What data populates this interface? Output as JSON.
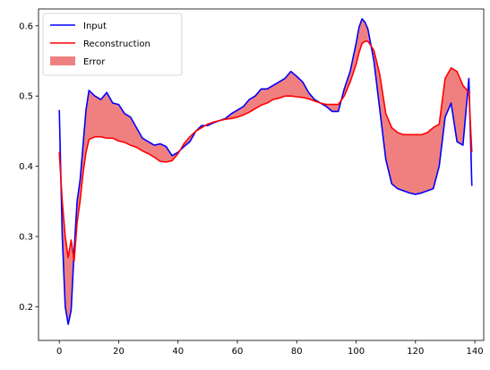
{
  "chart_data": {
    "type": "line",
    "xlim": [
      -7,
      143
    ],
    "ylim": [
      0.152,
      0.624
    ],
    "xticks": [
      0,
      20,
      40,
      60,
      80,
      100,
      120,
      140
    ],
    "yticks": [
      0.2,
      0.3,
      0.4,
      0.5,
      0.6
    ],
    "xtick_labels": [
      "0",
      "20",
      "40",
      "60",
      "80",
      "100",
      "120",
      "140"
    ],
    "ytick_labels": [
      "0.2",
      "0.3",
      "0.4",
      "0.5",
      "0.6"
    ],
    "grid": false,
    "legend_position": "top-left",
    "legend": [
      "Input",
      "Reconstruction",
      "Error"
    ],
    "series": [
      {
        "name": "Input",
        "color": "#0000ff",
        "x": [
          0,
          1,
          2,
          3,
          4,
          5,
          6,
          7,
          8,
          9,
          10,
          12,
          14,
          16,
          18,
          20,
          22,
          24,
          26,
          28,
          30,
          32,
          34,
          36,
          38,
          40,
          42,
          44,
          46,
          48,
          50,
          52,
          54,
          56,
          58,
          60,
          62,
          64,
          66,
          68,
          70,
          72,
          74,
          76,
          78,
          80,
          82,
          84,
          86,
          88,
          90,
          92,
          94,
          96,
          98,
          100,
          101,
          102,
          103,
          104,
          106,
          108,
          110,
          112,
          114,
          116,
          118,
          120,
          122,
          124,
          126,
          128,
          130,
          132,
          134,
          136,
          138,
          139
        ],
        "y": [
          0.48,
          0.3,
          0.2,
          0.175,
          0.195,
          0.28,
          0.35,
          0.38,
          0.43,
          0.48,
          0.508,
          0.5,
          0.495,
          0.505,
          0.49,
          0.488,
          0.475,
          0.47,
          0.455,
          0.44,
          0.435,
          0.43,
          0.432,
          0.428,
          0.415,
          0.42,
          0.428,
          0.435,
          0.45,
          0.458,
          0.458,
          0.462,
          0.465,
          0.468,
          0.475,
          0.48,
          0.485,
          0.495,
          0.5,
          0.51,
          0.51,
          0.515,
          0.52,
          0.525,
          0.535,
          0.528,
          0.52,
          0.505,
          0.495,
          0.49,
          0.485,
          0.478,
          0.478,
          0.51,
          0.535,
          0.575,
          0.598,
          0.61,
          0.605,
          0.595,
          0.55,
          0.48,
          0.41,
          0.375,
          0.368,
          0.365,
          0.362,
          0.36,
          0.362,
          0.365,
          0.368,
          0.4,
          0.47,
          0.49,
          0.435,
          0.43,
          0.525,
          0.372
        ]
      },
      {
        "name": "Reconstruction",
        "color": "#ff0000",
        "x": [
          0,
          1,
          2,
          3,
          4,
          5,
          6,
          7,
          8,
          9,
          10,
          12,
          14,
          16,
          18,
          20,
          22,
          24,
          26,
          28,
          30,
          32,
          34,
          36,
          38,
          40,
          42,
          44,
          46,
          48,
          50,
          52,
          54,
          56,
          58,
          60,
          62,
          64,
          66,
          68,
          70,
          72,
          74,
          76,
          78,
          80,
          82,
          84,
          86,
          88,
          90,
          92,
          94,
          96,
          98,
          100,
          101,
          102,
          103,
          104,
          106,
          108,
          110,
          112,
          114,
          116,
          118,
          120,
          122,
          124,
          126,
          128,
          130,
          132,
          134,
          136,
          138,
          139
        ],
        "y": [
          0.42,
          0.35,
          0.3,
          0.27,
          0.295,
          0.265,
          0.32,
          0.35,
          0.39,
          0.42,
          0.438,
          0.442,
          0.442,
          0.44,
          0.44,
          0.436,
          0.434,
          0.43,
          0.427,
          0.422,
          0.418,
          0.413,
          0.407,
          0.406,
          0.408,
          0.418,
          0.432,
          0.442,
          0.45,
          0.455,
          0.46,
          0.463,
          0.465,
          0.467,
          0.468,
          0.47,
          0.473,
          0.477,
          0.482,
          0.487,
          0.49,
          0.495,
          0.497,
          0.5,
          0.5,
          0.499,
          0.498,
          0.496,
          0.493,
          0.49,
          0.488,
          0.488,
          0.488,
          0.5,
          0.52,
          0.545,
          0.562,
          0.575,
          0.578,
          0.578,
          0.565,
          0.53,
          0.475,
          0.455,
          0.448,
          0.445,
          0.445,
          0.445,
          0.445,
          0.448,
          0.455,
          0.46,
          0.525,
          0.54,
          0.535,
          0.515,
          0.505,
          0.42
        ]
      }
    ],
    "error_band": {
      "name": "Error",
      "color": "#f08080",
      "between": [
        "Input",
        "Reconstruction"
      ]
    }
  }
}
